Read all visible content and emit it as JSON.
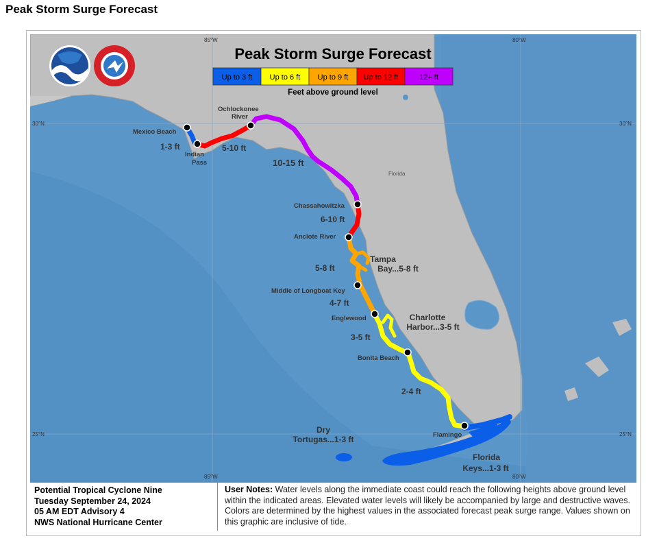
{
  "page_title": "Peak Storm Surge Forecast",
  "map": {
    "title": "Peak Storm Surge Forecast",
    "legend": {
      "items": [
        {
          "label": "Up to 3 ft",
          "color": "#0a5ee8",
          "text_color": "#000000"
        },
        {
          "label": "Up to 6 ft",
          "color": "#ffff00",
          "text_color": "#000000"
        },
        {
          "label": "Up to 9 ft",
          "color": "#ffa500",
          "text_color": "#000000"
        },
        {
          "label": "Up to 12 ft",
          "color": "#ff0000",
          "text_color": "#000000"
        },
        {
          "label": "12+ ft",
          "color": "#c000ff",
          "text_color": "#000000"
        }
      ],
      "caption": "Feet above ground level"
    },
    "grid_labels": {
      "lon_85_top": "85°W",
      "lon_80_top": "80°W",
      "lat_30_left": "30°N",
      "lat_30_right": "30°N",
      "lat_25_left": "25°N",
      "lat_25_right": "25°N",
      "lon_85_bottom": "85°W",
      "lon_80_bottom": "80°W"
    },
    "state_label": "Florida",
    "locations": {
      "mexico_beach": "Mexico Beach",
      "indian_pass_1": "Indian",
      "indian_pass_2": "Pass",
      "ochlockonee_1": "Ochlockonee",
      "ochlockonee_2": "River",
      "chassahowitzka": "Chassahowitzka",
      "anclote": "Anclote River",
      "longboat": "Middle of Longboat Key",
      "englewood": "Englewood",
      "bonita": "Bonita Beach",
      "flamingo": "Flamingo"
    },
    "surge_labels": {
      "s1": "1-3 ft",
      "s2": "5-10 ft",
      "s3": "10-15 ft",
      "s4": "6-10 ft",
      "s5": "5-8 ft",
      "s6": "4-7 ft",
      "s7": "3-5 ft",
      "s8": "2-4 ft",
      "tampa_1": "Tampa",
      "tampa_2": "Bay...5-8 ft",
      "charlotte_1": "Charlotte",
      "charlotte_2": "Harbor...3-5 ft",
      "dry_1": "Dry",
      "dry_2": "Tortugas...1-3 ft",
      "keys_1": "Florida",
      "keys_2": "Keys...1-3 ft"
    }
  },
  "advisory": {
    "line1": "Potential Tropical Cyclone Nine",
    "line2": "Tuesday September 24, 2024",
    "line3": "05 AM EDT Advisory 4",
    "line4": "NWS National Hurricane Center"
  },
  "notes": {
    "heading": "User Notes:",
    "text": " Water levels along the immediate coast could reach the following heights above ground level within the indicated areas. Elevated water levels will likely be accompanied by large and destructive waves. Colors are determined by the highest values in the associated forecast peak surge range. Values shown on this graphic are inclusive of tide."
  }
}
